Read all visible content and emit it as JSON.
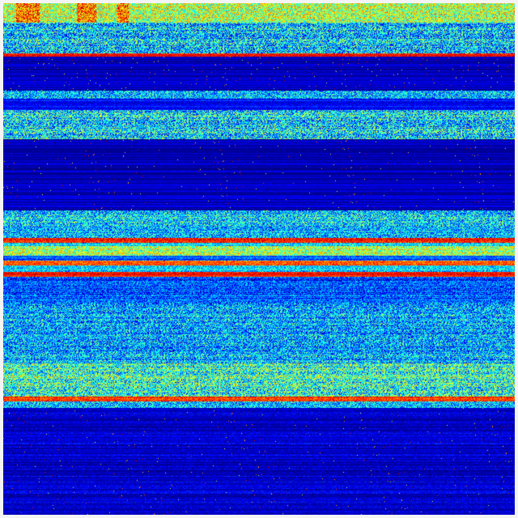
{
  "image": {
    "kind": "heatmap",
    "colormap": "jet",
    "background_color": "#00008f",
    "description_visible_text": ""
  }
}
